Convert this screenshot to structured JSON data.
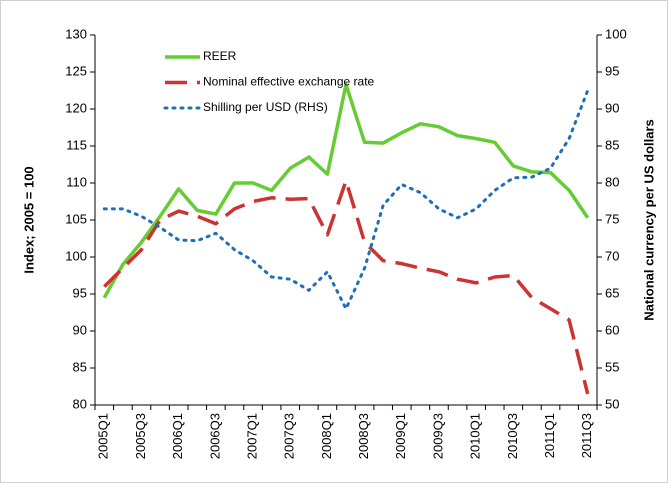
{
  "chart_data": {
    "type": "line",
    "categories": [
      "2005Q1",
      null,
      "2005Q3",
      null,
      "2006Q1",
      null,
      "2006Q3",
      null,
      "2007Q1",
      null,
      "2007Q3",
      null,
      "2008Q1",
      null,
      "2008Q3",
      null,
      "2009Q1",
      null,
      "2009Q3",
      null,
      "2010Q1",
      null,
      "2010Q3",
      null,
      "2011Q1",
      null,
      "2011Q3"
    ],
    "ylabel": "Index; 2005 = 100",
    "y2label": "National currency per US dollars",
    "ylim": [
      80,
      130
    ],
    "yticks": [
      80,
      85,
      90,
      95,
      100,
      105,
      110,
      115,
      120,
      125,
      130
    ],
    "y2lim": [
      50,
      100
    ],
    "y2ticks": [
      50,
      55,
      60,
      65,
      70,
      75,
      80,
      85,
      90,
      95,
      100
    ],
    "series": [
      {
        "name": "REER",
        "color": "#66cc33",
        "dash": "solid",
        "values": [
          94.5,
          99,
          102,
          105.5,
          109.2,
          106.3,
          105.8,
          110,
          110,
          109,
          112,
          113.5,
          111.2,
          123.3,
          115.5,
          115.4,
          116.8,
          118,
          117.6,
          116.4,
          116,
          115.5,
          112.3,
          111.5,
          111.4,
          109,
          105.3
        ]
      },
      {
        "name": "Nominal effective exchange rate",
        "color": "#cc3333",
        "dash": "dashed",
        "values": [
          96,
          98.5,
          101,
          105,
          106.2,
          105.5,
          104.5,
          106.5,
          107.5,
          108,
          107.8,
          107.9,
          103,
          110.3,
          102,
          99.5,
          99.1,
          98.5,
          98,
          97,
          96.5,
          97.3,
          97.5,
          94.5,
          93,
          91.5,
          81.5
        ]
      },
      {
        "name": "Shilling per USD (RHS)",
        "color": "#1f6fb8",
        "dash": "dotted",
        "axis": "y2",
        "values": [
          76.5,
          76.5,
          75.5,
          74,
          72.3,
          72.2,
          73.2,
          71,
          69.5,
          67.3,
          67,
          65.5,
          68,
          63,
          68.5,
          77,
          79.8,
          78.7,
          76.5,
          75.3,
          76.5,
          79,
          80.7,
          80.8,
          82,
          86,
          92.5
        ]
      }
    ]
  }
}
